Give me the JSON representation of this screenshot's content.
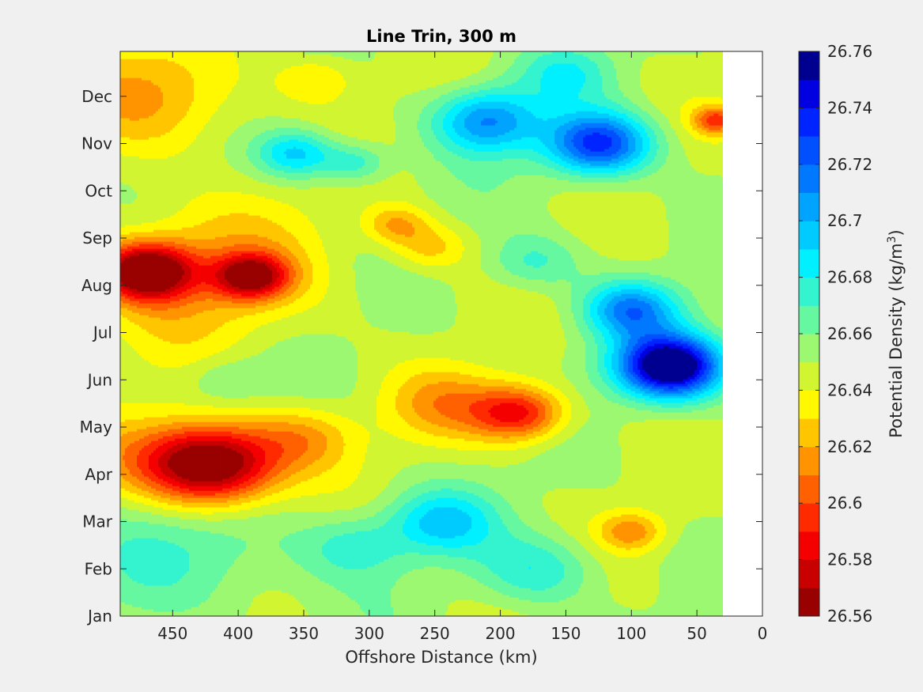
{
  "chart_data": {
    "type": "heatmap",
    "title": "Line Trin, 300 m",
    "xlabel": "Offshore Distance (km)",
    "ylabel": "",
    "x_ticks": [
      450,
      400,
      350,
      300,
      250,
      200,
      150,
      100,
      50,
      0
    ],
    "x_tick_labels": [
      "450",
      "400",
      "350",
      "300",
      "250",
      "200",
      "150",
      "100",
      "50",
      "0"
    ],
    "xlim": [
      490,
      0
    ],
    "x_reversed": true,
    "y_tick_labels": [
      "Jan",
      "Feb",
      "Mar",
      "Apr",
      "May",
      "Jun",
      "Jul",
      "Aug",
      "Sep",
      "Oct",
      "Nov",
      "Dec"
    ],
    "ylim": [
      0,
      11.95
    ],
    "data_x_range": [
      490,
      30
    ],
    "colorbar": {
      "label": "Potential Density (kg/m",
      "label_superscript": "3",
      "label_suffix": ")",
      "tick_labels": [
        "26.56",
        "26.58",
        "26.6",
        "26.62",
        "26.64",
        "26.66",
        "26.68",
        "26.7",
        "26.72",
        "26.74",
        "26.76"
      ],
      "levels": [
        26.56,
        26.57,
        26.58,
        26.59,
        26.6,
        26.61,
        26.62,
        26.63,
        26.64,
        26.65,
        26.66,
        26.67,
        26.68,
        26.69,
        26.7,
        26.71,
        26.72,
        26.73,
        26.74,
        26.75,
        26.76
      ],
      "colors": [
        "#990000",
        "#c80000",
        "#f50000",
        "#ff2a00",
        "#ff6000",
        "#ff9400",
        "#ffc600",
        "#fff800",
        "#d2f532",
        "#9cf870",
        "#66f8a0",
        "#34f4d0",
        "#00f0ff",
        "#00cbff",
        "#00a4ff",
        "#0078ff",
        "#0050ff",
        "#0024ff",
        "#0000e0",
        "#000090"
      ]
    },
    "features": [
      {
        "x": 470,
        "y": 7.3,
        "v": -0.095,
        "s": 35
      },
      {
        "x": 390,
        "y": 7.2,
        "v": -0.075,
        "s": 28
      },
      {
        "x": 430,
        "y": 7.3,
        "v": -0.03,
        "s": 90
      },
      {
        "x": 420,
        "y": 3.2,
        "v": -0.105,
        "s": 50
      },
      {
        "x": 470,
        "y": 3.4,
        "v": -0.02,
        "s": 55
      },
      {
        "x": 350,
        "y": 3.8,
        "v": -0.03,
        "s": 40
      },
      {
        "x": 185,
        "y": 4.3,
        "v": -0.065,
        "s": 35
      },
      {
        "x": 240,
        "y": 4.5,
        "v": -0.03,
        "s": 45
      },
      {
        "x": 410,
        "y": 5.0,
        "v": 0.015,
        "s": 30
      },
      {
        "x": 255,
        "y": 7.8,
        "v": -0.025,
        "s": 30
      },
      {
        "x": 280,
        "y": 8.3,
        "v": -0.03,
        "s": 25
      },
      {
        "x": 460,
        "y": 11.0,
        "v": -0.03,
        "s": 70
      },
      {
        "x": 340,
        "y": 11.4,
        "v": -0.02,
        "s": 30
      },
      {
        "x": 35,
        "y": 10.5,
        "v": -0.05,
        "s": 18
      },
      {
        "x": 70,
        "y": 5.3,
        "v": 0.125,
        "s": 40
      },
      {
        "x": 100,
        "y": 6.5,
        "v": 0.06,
        "s": 35
      },
      {
        "x": 125,
        "y": 10.0,
        "v": 0.085,
        "s": 40
      },
      {
        "x": 210,
        "y": 10.5,
        "v": 0.06,
        "s": 40
      },
      {
        "x": 150,
        "y": 11.5,
        "v": 0.025,
        "s": 35
      },
      {
        "x": 355,
        "y": 9.8,
        "v": 0.045,
        "s": 30
      },
      {
        "x": 310,
        "y": 9.6,
        "v": 0.03,
        "s": 25
      },
      {
        "x": 245,
        "y": 2.0,
        "v": 0.04,
        "s": 40
      },
      {
        "x": 170,
        "y": 1.0,
        "v": 0.03,
        "s": 45
      },
      {
        "x": 175,
        "y": 7.5,
        "v": 0.025,
        "s": 35
      },
      {
        "x": 430,
        "y": 1.3,
        "v": 0.02,
        "s": 80
      },
      {
        "x": 100,
        "y": 1.8,
        "v": -0.035,
        "s": 25
      },
      {
        "x": 310,
        "y": 1.5,
        "v": 0.025,
        "s": 40
      }
    ]
  }
}
